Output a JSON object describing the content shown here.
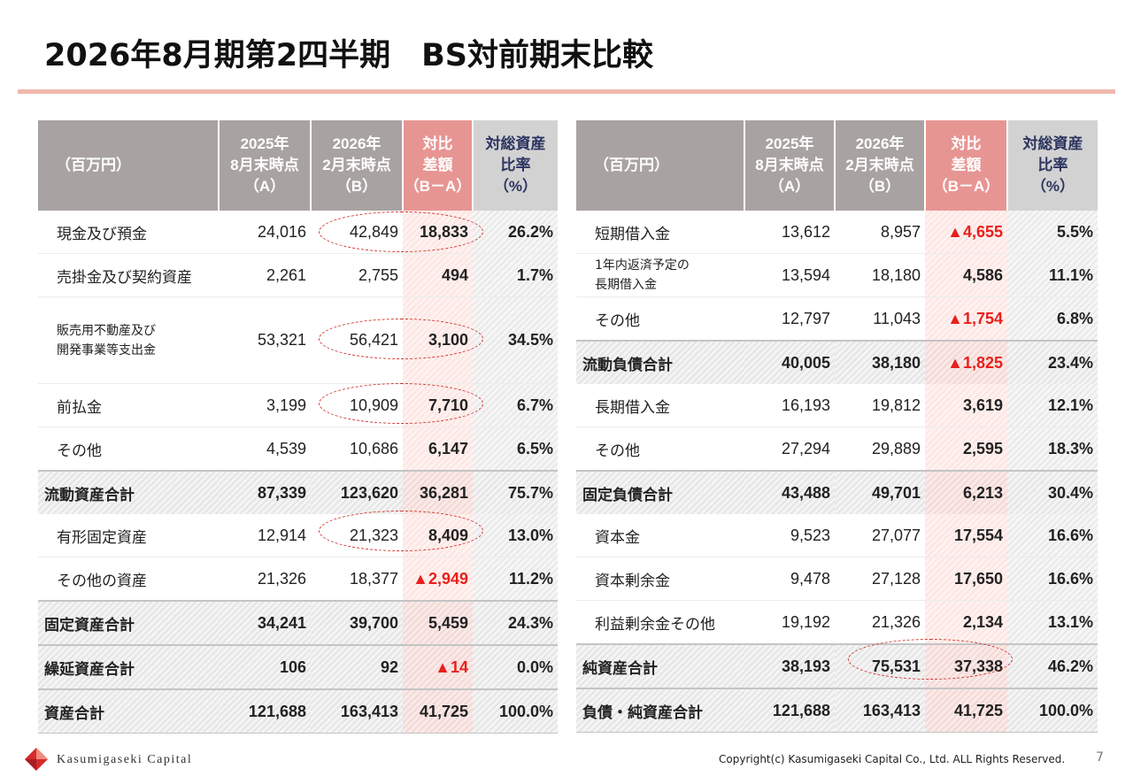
{
  "title": "2026年8月期第2四半期　BS対前期末比較",
  "header": {
    "unit": "（百万円）",
    "col_a": [
      "2025年",
      "8月末時点",
      "（A）"
    ],
    "col_b": [
      "2026年",
      "2月末時点",
      "（B）"
    ],
    "col_diff": [
      "対比",
      "差額",
      "（B－A）"
    ],
    "col_ratio": [
      "対総資産",
      "比率",
      "（%）"
    ]
  },
  "assets": [
    {
      "label": "現金及び預金",
      "a": "24,016",
      "b": "42,849",
      "diff": "18,833",
      "ratio": "26.2%",
      "negative": false,
      "total": false
    },
    {
      "label": "売掛金及び契約資産",
      "a": "2,261",
      "b": "2,755",
      "diff": "494",
      "ratio": "1.7%",
      "negative": false,
      "total": false
    },
    {
      "label": "販売用不動産及び\n開発事業等支出金",
      "a": "53,321",
      "b": "56,421",
      "diff": "3,100",
      "ratio": "34.5%",
      "negative": false,
      "total": false
    },
    {
      "label": "前払金",
      "a": "3,199",
      "b": "10,909",
      "diff": "7,710",
      "ratio": "6.7%",
      "negative": false,
      "total": false
    },
    {
      "label": "その他",
      "a": "4,539",
      "b": "10,686",
      "diff": "6,147",
      "ratio": "6.5%",
      "negative": false,
      "total": false
    },
    {
      "label": "流動資産合計",
      "a": "87,339",
      "b": "123,620",
      "diff": "36,281",
      "ratio": "75.7%",
      "negative": false,
      "total": true
    },
    {
      "label": "有形固定資産",
      "a": "12,914",
      "b": "21,323",
      "diff": "8,409",
      "ratio": "13.0%",
      "negative": false,
      "total": false
    },
    {
      "label": "その他の資産",
      "a": "21,326",
      "b": "18,377",
      "diff": "▲2,949",
      "ratio": "11.2%",
      "negative": true,
      "total": false
    },
    {
      "label": "固定資産合計",
      "a": "34,241",
      "b": "39,700",
      "diff": "5,459",
      "ratio": "24.3%",
      "negative": false,
      "total": true
    },
    {
      "label": "繰延資産合計",
      "a": "106",
      "b": "92",
      "diff": "▲14",
      "ratio": "0.0%",
      "negative": true,
      "total": true
    },
    {
      "label": "資産合計",
      "a": "121,688",
      "b": "163,413",
      "diff": "41,725",
      "ratio": "100.0%",
      "negative": false,
      "total": true
    }
  ],
  "liabilities": [
    {
      "label": "短期借入金",
      "a": "13,612",
      "b": "8,957",
      "diff": "▲4,655",
      "ratio": "5.5%",
      "negative": true,
      "total": false
    },
    {
      "label": "1年内返済予定の\n長期借入金",
      "a": "13,594",
      "b": "18,180",
      "diff": "4,586",
      "ratio": "11.1%",
      "negative": false,
      "total": false
    },
    {
      "label": "その他",
      "a": "12,797",
      "b": "11,043",
      "diff": "▲1,754",
      "ratio": "6.8%",
      "negative": true,
      "total": false
    },
    {
      "label": "流動負債合計",
      "a": "40,005",
      "b": "38,180",
      "diff": "▲1,825",
      "ratio": "23.4%",
      "negative": true,
      "total": true
    },
    {
      "label": "長期借入金",
      "a": "16,193",
      "b": "19,812",
      "diff": "3,619",
      "ratio": "12.1%",
      "negative": false,
      "total": false
    },
    {
      "label": "その他",
      "a": "27,294",
      "b": "29,889",
      "diff": "2,595",
      "ratio": "18.3%",
      "negative": false,
      "total": false
    },
    {
      "label": "固定負債合計",
      "a": "43,488",
      "b": "49,701",
      "diff": "6,213",
      "ratio": "30.4%",
      "negative": false,
      "total": true
    },
    {
      "label": "資本金",
      "a": "9,523",
      "b": "27,077",
      "diff": "17,554",
      "ratio": "16.6%",
      "negative": false,
      "total": false
    },
    {
      "label": "資本剰余金",
      "a": "9,478",
      "b": "27,128",
      "diff": "17,650",
      "ratio": "16.6%",
      "negative": false,
      "total": false
    },
    {
      "label": "利益剰余金その他",
      "a": "19,192",
      "b": "21,326",
      "diff": "2,134",
      "ratio": "13.1%",
      "negative": false,
      "total": false
    },
    {
      "label": "純資産合計",
      "a": "38,193",
      "b": "75,531",
      "diff": "37,338",
      "ratio": "46.2%",
      "negative": false,
      "total": true
    },
    {
      "label": "負債・純資産合計",
      "a": "121,688",
      "b": "163,413",
      "diff": "41,725",
      "ratio": "100.0%",
      "negative": false,
      "total": true
    }
  ],
  "footer": {
    "brand": "Kasumigaseki Capital",
    "copyright": "Copyright(c) Kasumigaseki Capital Co., Ltd. ALL Rights Reserved.",
    "page": "7"
  },
  "colors": {
    "accent_line": "#f0b8ad",
    "header_gray": "#a8a3a2",
    "header_diff": "#e79593",
    "negative": "#e8201c",
    "logo_red": "#d52b2b"
  }
}
